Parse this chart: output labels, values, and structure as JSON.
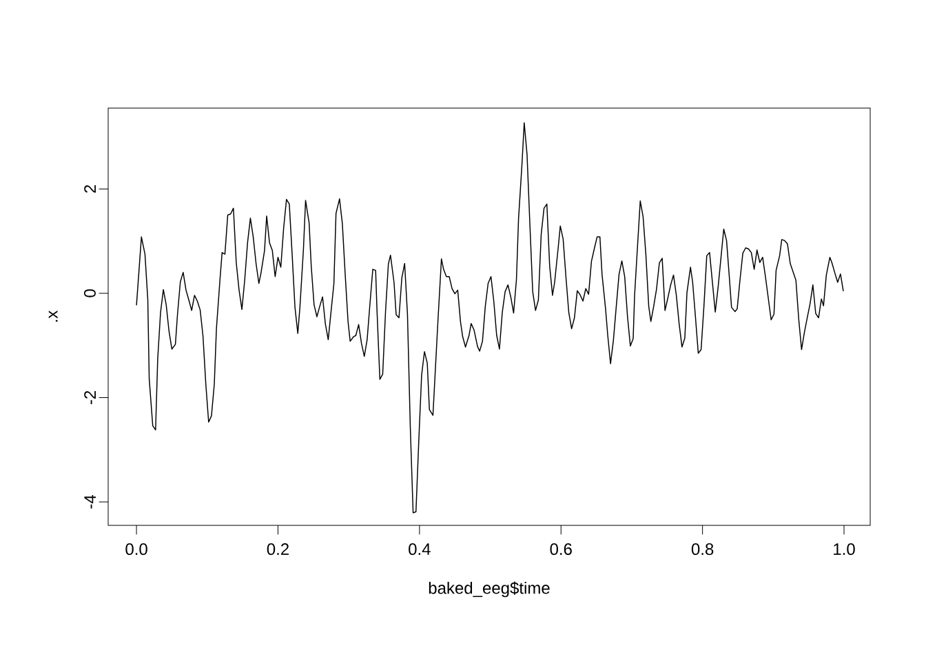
{
  "chart_data": {
    "type": "line",
    "xlabel": "baked_eeg$time",
    "ylabel": ".x",
    "color": "#000000",
    "xlim": [
      -0.04,
      1.037
    ],
    "ylim": [
      -4.45,
      3.55
    ],
    "xticks": [
      {
        "value": 0,
        "label": "0.0"
      },
      {
        "value": 0.2,
        "label": "0.2"
      },
      {
        "value": 0.4,
        "label": "0.4"
      },
      {
        "value": 0.6,
        "label": "0.6"
      },
      {
        "value": 0.8,
        "label": "0.8"
      },
      {
        "value": 1,
        "label": "1.0"
      }
    ],
    "yticks": [
      -4,
      -2,
      0,
      2
    ],
    "x": [
      0.0,
      0.007,
      0.012,
      0.016,
      0.018,
      0.023,
      0.027,
      0.03,
      0.034,
      0.038,
      0.042,
      0.046,
      0.05,
      0.055,
      0.058,
      0.062,
      0.066,
      0.07,
      0.074,
      0.078,
      0.082,
      0.086,
      0.09,
      0.094,
      0.098,
      0.102,
      0.106,
      0.11,
      0.113,
      0.118,
      0.121,
      0.125,
      0.129,
      0.133,
      0.137,
      0.141,
      0.145,
      0.149,
      0.153,
      0.157,
      0.161,
      0.165,
      0.169,
      0.173,
      0.176,
      0.181,
      0.184,
      0.188,
      0.192,
      0.196,
      0.2,
      0.204,
      0.208,
      0.212,
      0.216,
      0.22,
      0.224,
      0.228,
      0.231,
      0.236,
      0.239,
      0.244,
      0.247,
      0.251,
      0.255,
      0.259,
      0.263,
      0.267,
      0.271,
      0.275,
      0.279,
      0.282,
      0.287,
      0.291,
      0.295,
      0.299,
      0.302,
      0.307,
      0.31,
      0.314,
      0.318,
      0.322,
      0.326,
      0.33,
      0.334,
      0.338,
      0.34,
      0.344,
      0.348,
      0.352,
      0.356,
      0.359,
      0.364,
      0.367,
      0.371,
      0.375,
      0.379,
      0.383,
      0.387,
      0.391,
      0.395,
      0.399,
      0.403,
      0.407,
      0.411,
      0.414,
      0.419,
      0.422,
      0.426,
      0.431,
      0.434,
      0.438,
      0.442,
      0.446,
      0.45,
      0.454,
      0.458,
      0.461,
      0.465,
      0.47,
      0.473,
      0.477,
      0.482,
      0.485,
      0.489,
      0.493,
      0.497,
      0.501,
      0.505,
      0.509,
      0.513,
      0.517,
      0.521,
      0.525,
      0.529,
      0.533,
      0.537,
      0.54,
      0.545,
      0.548,
      0.552,
      0.556,
      0.56,
      0.564,
      0.568,
      0.572,
      0.576,
      0.58,
      0.584,
      0.588,
      0.591,
      0.596,
      0.599,
      0.603,
      0.607,
      0.611,
      0.615,
      0.619,
      0.623,
      0.627,
      0.631,
      0.635,
      0.639,
      0.643,
      0.647,
      0.651,
      0.655,
      0.658,
      0.663,
      0.666,
      0.67,
      0.674,
      0.678,
      0.682,
      0.686,
      0.69,
      0.694,
      0.698,
      0.702,
      0.704,
      0.708,
      0.712,
      0.716,
      0.72,
      0.724,
      0.727,
      0.731,
      0.735,
      0.739,
      0.743,
      0.747,
      0.751,
      0.755,
      0.759,
      0.763,
      0.767,
      0.771,
      0.775,
      0.778,
      0.783,
      0.786,
      0.79,
      0.794,
      0.798,
      0.802,
      0.806,
      0.81,
      0.814,
      0.818,
      0.822,
      0.826,
      0.83,
      0.834,
      0.838,
      0.841,
      0.846,
      0.849,
      0.853,
      0.857,
      0.861,
      0.865,
      0.869,
      0.873,
      0.877,
      0.881,
      0.885,
      0.889,
      0.893,
      0.897,
      0.901,
      0.904,
      0.909,
      0.912,
      0.916,
      0.92,
      0.924,
      0.928,
      0.932,
      0.936,
      0.94,
      0.944,
      0.948,
      0.952,
      0.956,
      0.96,
      0.964,
      0.968,
      0.971,
      0.975,
      0.98,
      0.983,
      0.987,
      0.991,
      0.995,
      0.999
    ],
    "values": [
      -0.23,
      1.08,
      0.75,
      -0.12,
      -1.64,
      -2.54,
      -2.62,
      -1.26,
      -0.37,
      0.07,
      -0.22,
      -0.73,
      -1.07,
      -0.98,
      -0.4,
      0.22,
      0.4,
      0.06,
      -0.13,
      -0.33,
      -0.04,
      -0.15,
      -0.32,
      -0.82,
      -1.74,
      -2.47,
      -2.35,
      -1.74,
      -0.68,
      0.26,
      0.78,
      0.75,
      1.5,
      1.52,
      1.63,
      0.59,
      0.06,
      -0.31,
      0.26,
      0.97,
      1.44,
      1.08,
      0.57,
      0.19,
      0.39,
      0.82,
      1.48,
      0.97,
      0.82,
      0.32,
      0.69,
      0.5,
      1.25,
      1.8,
      1.71,
      0.75,
      -0.27,
      -0.77,
      -0.27,
      0.85,
      1.78,
      1.35,
      0.52,
      -0.22,
      -0.45,
      -0.25,
      -0.07,
      -0.59,
      -0.89,
      -0.35,
      0.18,
      1.53,
      1.81,
      1.33,
      0.36,
      -0.54,
      -0.92,
      -0.83,
      -0.81,
      -0.6,
      -0.96,
      -1.21,
      -0.89,
      -0.2,
      0.46,
      0.44,
      -0.35,
      -1.65,
      -1.55,
      -0.35,
      0.56,
      0.73,
      0.21,
      -0.41,
      -0.47,
      0.29,
      0.57,
      -0.4,
      -2.57,
      -4.21,
      -4.19,
      -2.83,
      -1.57,
      -1.12,
      -1.34,
      -2.23,
      -2.34,
      -1.57,
      -0.55,
      0.66,
      0.46,
      0.32,
      0.32,
      0.09,
      -0.01,
      0.06,
      -0.55,
      -0.83,
      -1.03,
      -0.81,
      -0.58,
      -0.7,
      -1.02,
      -1.11,
      -0.92,
      -0.25,
      0.19,
      0.32,
      -0.15,
      -0.8,
      -1.07,
      -0.37,
      0.03,
      0.16,
      -0.07,
      -0.38,
      0.26,
      1.43,
      2.51,
      3.27,
      2.66,
      1.33,
      0.03,
      -0.33,
      -0.13,
      1.13,
      1.63,
      1.71,
      0.52,
      -0.04,
      0.21,
      0.87,
      1.29,
      1.04,
      0.31,
      -0.37,
      -0.68,
      -0.47,
      0.05,
      -0.03,
      -0.15,
      0.09,
      -0.02,
      0.61,
      0.85,
      1.08,
      1.08,
      0.36,
      -0.3,
      -0.8,
      -1.35,
      -0.91,
      -0.27,
      0.36,
      0.62,
      0.32,
      -0.45,
      -1.01,
      -0.87,
      -0.04,
      0.87,
      1.77,
      1.47,
      0.73,
      -0.25,
      -0.54,
      -0.25,
      0.08,
      0.58,
      0.67,
      -0.33,
      -0.09,
      0.16,
      0.35,
      -0.04,
      -0.59,
      -1.03,
      -0.86,
      0.01,
      0.5,
      0.22,
      -0.45,
      -1.15,
      -1.08,
      -0.25,
      0.72,
      0.78,
      0.21,
      -0.36,
      0.11,
      0.67,
      1.23,
      1.01,
      0.29,
      -0.27,
      -0.35,
      -0.3,
      0.26,
      0.77,
      0.87,
      0.85,
      0.78,
      0.46,
      0.83,
      0.59,
      0.69,
      0.31,
      -0.1,
      -0.51,
      -0.4,
      0.44,
      0.72,
      1.03,
      1.01,
      0.95,
      0.57,
      0.41,
      0.25,
      -0.5,
      -1.08,
      -0.75,
      -0.47,
      -0.2,
      0.16,
      -0.39,
      -0.47,
      -0.11,
      -0.24,
      0.35,
      0.69,
      0.58,
      0.39,
      0.21,
      0.37,
      0.04
    ]
  }
}
